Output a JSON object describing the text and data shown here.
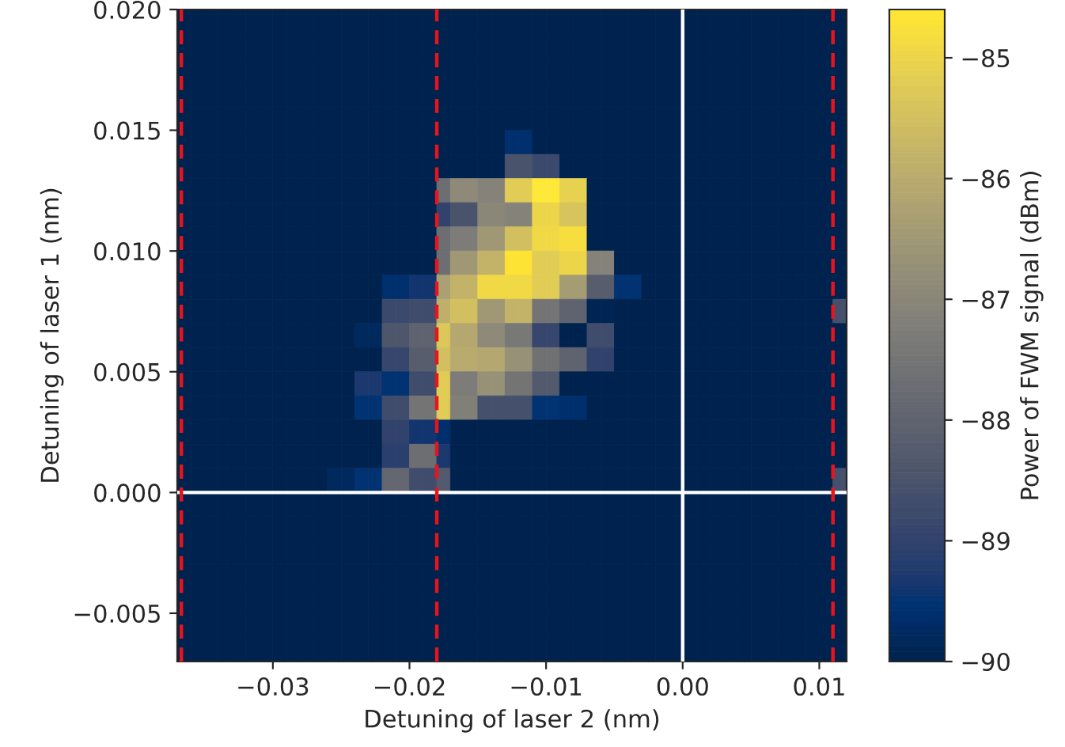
{
  "chart_data": {
    "type": "heatmap",
    "xlabel": "Detuning of laser 2 (nm)",
    "ylabel": "Detuning of laser 1 (nm)",
    "clabel": "Power of FWM signal (dBm)",
    "cells": [
      [
        -90,
        -90,
        -90,
        -90,
        -90,
        -90,
        -90,
        -90,
        -90,
        -90,
        -90,
        -90,
        -90,
        -90,
        -90,
        -90,
        -90,
        -90,
        -90,
        -90,
        -90,
        -90,
        -90,
        -90,
        -90,
        -90,
        -90,
        -90,
        -90,
        -90,
        -90,
        -90,
        -90,
        -90,
        -90,
        -90,
        -90,
        -90,
        -90,
        -90,
        -90,
        -90,
        -90,
        -90,
        -90,
        -90,
        -90,
        -90,
        -90
      ],
      [
        -90,
        -90,
        -90,
        -90,
        -90,
        -90,
        -90,
        -90,
        -90,
        -90,
        -90,
        -90,
        -90,
        -90,
        -90,
        -90,
        -90,
        -90,
        -90,
        -90,
        -90,
        -90,
        -90,
        -90,
        -90,
        -90,
        -90,
        -90,
        -90,
        -90,
        -90,
        -90,
        -90,
        -90,
        -90,
        -90,
        -90,
        -90,
        -90,
        -90,
        -90,
        -90,
        -90,
        -90,
        -90,
        -90,
        -90,
        -90,
        -90
      ],
      [
        -90,
        -90,
        -90,
        -90,
        -90,
        -90,
        -90,
        -90,
        -90,
        -90,
        -90,
        -90,
        -90,
        -90,
        -90,
        -90,
        -90,
        -90,
        -90,
        -90,
        -90,
        -90,
        -90,
        -90,
        -90,
        -90,
        -90,
        -90,
        -90,
        -90,
        -90,
        -90,
        -90,
        -90,
        -90,
        -90,
        -90,
        -90,
        -90,
        -90,
        -90,
        -90,
        -90,
        -90,
        -90,
        -90,
        -90,
        -90,
        -90
      ],
      [
        -90,
        -90,
        -90,
        -90,
        -90,
        -90,
        -90,
        -90,
        -90,
        -90,
        -90,
        -90,
        -90,
        -90,
        -90,
        -90,
        -90,
        -90,
        -90,
        -90,
        -90,
        -90,
        -90,
        -90,
        -90,
        -90,
        -90,
        -90,
        -90,
        -90,
        -90,
        -90,
        -90,
        -90,
        -90,
        -90,
        -90,
        -90,
        -90,
        -90,
        -90,
        -90,
        -90,
        -90,
        -90,
        -90,
        -90,
        -90,
        -90
      ],
      [
        -90,
        -90,
        -90,
        -90,
        -90,
        -90,
        -90,
        -90,
        -90,
        -90,
        -90,
        -90,
        -90,
        -90,
        -90,
        -90,
        -90,
        -90,
        -90,
        -90,
        -90,
        -90,
        -90,
        -90,
        -90,
        -90,
        -90,
        -90,
        -90,
        -90,
        -90,
        -90,
        -90,
        -90,
        -90,
        -90,
        -90,
        -90,
        -90,
        -90,
        -90,
        -90,
        -90,
        -90,
        -90,
        -90,
        -90,
        -90,
        -90
      ],
      [
        -90,
        -90,
        -90,
        -90,
        -90,
        -90,
        -90,
        -90,
        -90,
        -90,
        -90,
        -90,
        -90,
        -90,
        -90,
        -90,
        -90,
        -90,
        -90,
        -90,
        -90,
        -90,
        -90,
        -90,
        -89.6,
        -89.6,
        -90,
        -90,
        -90,
        -90,
        -90,
        -90,
        -90,
        -90,
        -90,
        -90,
        -90,
        -90,
        -90,
        -90,
        -90,
        -90,
        -90,
        -90,
        -90,
        -90,
        -90,
        -90,
        -90
      ],
      [
        -90,
        -90,
        -90,
        -90,
        -90,
        -90,
        -90,
        -90,
        -90,
        -90,
        -90,
        -90,
        -90,
        -90,
        -90,
        -90,
        -90,
        -90,
        -90,
        -90,
        -90,
        -90,
        -90,
        -90,
        -88.5,
        -88.5,
        -88.8,
        -88.8,
        -90,
        -90,
        -90,
        -90,
        -90,
        -90,
        -90,
        -90,
        -90,
        -90,
        -90,
        -90,
        -90,
        -90,
        -90,
        -90,
        -90,
        -90,
        -90,
        -90,
        -90
      ],
      [
        -90,
        -90,
        -90,
        -90,
        -90,
        -90,
        -90,
        -90,
        -90,
        -90,
        -90,
        -90,
        -90,
        -90,
        -90,
        -90,
        -90,
        -90,
        -90,
        -87.7,
        -86.9,
        -86.9,
        -87.1,
        -87.1,
        -85.2,
        -85.2,
        -84.6,
        -84.6,
        -85.1,
        -85.1,
        -90,
        -90,
        -90,
        -90,
        -90,
        -90,
        -90,
        -90,
        -90,
        -90,
        -90,
        -90,
        -90,
        -90,
        -90,
        -90,
        -90,
        -90,
        -90
      ],
      [
        -90,
        -90,
        -90,
        -90,
        -90,
        -90,
        -90,
        -90,
        -90,
        -90,
        -90,
        -90,
        -90,
        -90,
        -90,
        -90,
        -90,
        -90,
        -90,
        -89.0,
        -88.5,
        -88.5,
        -87.0,
        -87.0,
        -87.1,
        -87.1,
        -85.0,
        -85.0,
        -85.4,
        -85.4,
        -90,
        -90,
        -90,
        -90,
        -90,
        -90,
        -90,
        -90,
        -90,
        -90,
        -90,
        -90,
        -90,
        -90,
        -90,
        -90,
        -90,
        -90,
        -90
      ],
      [
        -90,
        -90,
        -90,
        -90,
        -90,
        -90,
        -90,
        -90,
        -90,
        -90,
        -90,
        -90,
        -90,
        -90,
        -90,
        -90,
        -90,
        -90,
        -90,
        -87.7,
        -87.3,
        -87.3,
        -86.5,
        -86.5,
        -85.5,
        -85.5,
        -84.9,
        -84.9,
        -84.8,
        -84.8,
        -90,
        -90,
        -90,
        -90,
        -90,
        -90,
        -90,
        -90,
        -90,
        -90,
        -90,
        -90,
        -90,
        -90,
        -90,
        -90,
        -90,
        -90,
        -90
      ],
      [
        -90,
        -90,
        -90,
        -90,
        -90,
        -90,
        -90,
        -90,
        -90,
        -90,
        -90,
        -90,
        -90,
        -90,
        -90,
        -90,
        -90,
        -90,
        -90,
        -87.7,
        -86.5,
        -86.5,
        -85.8,
        -85.8,
        -84.7,
        -84.7,
        -85.2,
        -85.2,
        -85.0,
        -85.0,
        -87.1,
        -87.1,
        -90,
        -90,
        -90,
        -90,
        -90,
        -90,
        -90,
        -90,
        -90,
        -90,
        -90,
        -90,
        -90,
        -90,
        -90,
        -90,
        -90
      ],
      [
        -90,
        -90,
        -90,
        -90,
        -90,
        -90,
        -90,
        -90,
        -90,
        -90,
        -90,
        -90,
        -90,
        -90,
        -90,
        -89.6,
        -89.6,
        -89.4,
        -89.4,
        -86.3,
        -85.8,
        -85.8,
        -84.9,
        -84.9,
        -84.9,
        -84.9,
        -85.2,
        -85.2,
        -86.4,
        -86.4,
        -88.2,
        -88.2,
        -89.5,
        -89.5,
        -90,
        -90,
        -90,
        -90,
        -90,
        -90,
        -90,
        -90,
        -90,
        -90,
        -90,
        -90,
        -90,
        -90,
        -90
      ],
      [
        -90,
        -90,
        -90,
        -90,
        -90,
        -90,
        -90,
        -90,
        -90,
        -90,
        -90,
        -90,
        -90,
        -90,
        -90,
        -88.8,
        -88.8,
        -88.7,
        -88.7,
        -85.9,
        -85.5,
        -85.5,
        -86.5,
        -86.5,
        -85.8,
        -85.8,
        -87.5,
        -87.5,
        -88.0,
        -88.0,
        -89.9,
        -89.9,
        -90,
        -90,
        -90,
        -90,
        -90,
        -90,
        -90,
        -90,
        -90,
        -90,
        -90,
        -90,
        -90,
        -90,
        -90,
        -90,
        -88.6
      ],
      [
        -90,
        -90,
        -90,
        -90,
        -90,
        -90,
        -90,
        -90,
        -90,
        -90,
        -90,
        -90,
        -90,
        -89.8,
        -89.8,
        -88.4,
        -88.4,
        -88.0,
        -88.0,
        -85.3,
        -86.1,
        -86.1,
        -86.9,
        -86.9,
        -87.4,
        -87.4,
        -88.9,
        -88.9,
        -90,
        -90,
        -88.7,
        -88.7,
        -90,
        -90,
        -90,
        -90,
        -90,
        -90,
        -90,
        -90,
        -90,
        -90,
        -90,
        -90,
        -90,
        -90,
        -90,
        -90,
        -90
      ],
      [
        -90,
        -90,
        -90,
        -90,
        -90,
        -90,
        -90,
        -90,
        -90,
        -90,
        -90,
        -90,
        -90,
        -90,
        -90,
        -88.9,
        -88.9,
        -88.2,
        -88.2,
        -85.5,
        -86.0,
        -86.0,
        -86.1,
        -86.1,
        -86.7,
        -86.7,
        -87.6,
        -87.6,
        -88.0,
        -88.0,
        -89.0,
        -89.0,
        -90,
        -90,
        -90,
        -90,
        -90,
        -90,
        -90,
        -90,
        -90,
        -90,
        -90,
        -90,
        -90,
        -90,
        -90,
        -90,
        -90
      ],
      [
        -90,
        -90,
        -90,
        -90,
        -90,
        -90,
        -90,
        -90,
        -90,
        -90,
        -90,
        -90,
        -90,
        -89.3,
        -89.3,
        -89.5,
        -89.5,
        -88.7,
        -88.7,
        -85.2,
        -87.3,
        -87.3,
        -86.7,
        -86.7,
        -87.5,
        -87.5,
        -88.3,
        -88.3,
        -90,
        -90,
        -90,
        -90,
        -90,
        -90,
        -90,
        -90,
        -90,
        -90,
        -90,
        -90,
        -90,
        -90,
        -90,
        -90,
        -90,
        -90,
        -90,
        -90,
        -90
      ],
      [
        -90,
        -90,
        -90,
        -90,
        -90,
        -90,
        -90,
        -90,
        -90,
        -90,
        -90,
        -90,
        -90,
        -89.5,
        -89.5,
        -88.7,
        -88.7,
        -87.5,
        -87.5,
        -85.2,
        -87.2,
        -87.2,
        -88.6,
        -88.6,
        -88.6,
        -88.6,
        -89.5,
        -89.5,
        -89.6,
        -89.6,
        -90,
        -90,
        -90,
        -90,
        -90,
        -90,
        -90,
        -90,
        -90,
        -90,
        -90,
        -90,
        -90,
        -90,
        -90,
        -90,
        -90,
        -90,
        -90
      ],
      [
        -90,
        -90,
        -90,
        -90,
        -90,
        -90,
        -90,
        -90,
        -90,
        -90,
        -90,
        -90,
        -90,
        -90,
        -90,
        -89.0,
        -89.0,
        -89.4,
        -89.4,
        -89.6,
        -90,
        -90,
        -90,
        -90,
        -90,
        -90,
        -90,
        -90,
        -90,
        -90,
        -90,
        -90,
        -90,
        -90,
        -90,
        -90,
        -90,
        -90,
        -90,
        -90,
        -90,
        -90,
        -90,
        -90,
        -90,
        -90,
        -90,
        -90,
        -90
      ],
      [
        -90,
        -90,
        -90,
        -90,
        -90,
        -90,
        -90,
        -90,
        -90,
        -90,
        -90,
        -90,
        -90,
        -90,
        -90,
        -89.1,
        -89.1,
        -87.7,
        -87.7,
        -89.3,
        -90,
        -90,
        -90,
        -90,
        -90,
        -90,
        -90,
        -90,
        -90,
        -90,
        -90,
        -90,
        -90,
        -90,
        -90,
        -90,
        -90,
        -90,
        -90,
        -90,
        -90,
        -90,
        -90,
        -90,
        -90,
        -90,
        -90,
        -90,
        -90
      ],
      [
        -90,
        -90,
        -90,
        -90,
        -90,
        -90,
        -90,
        -90,
        -90,
        -90,
        -90,
        -89.8,
        -89.8,
        -89.5,
        -89.5,
        -87.9,
        -87.9,
        -88.7,
        -88.7,
        -88.3,
        -90,
        -90,
        -90,
        -90,
        -90,
        -90,
        -90,
        -90,
        -90,
        -90,
        -90,
        -90,
        -90,
        -90,
        -90,
        -90,
        -90,
        -90,
        -90,
        -90,
        -90,
        -90,
        -90,
        -90,
        -90,
        -90,
        -90,
        -90,
        -88.6
      ],
      [
        -90,
        -90,
        -90,
        -90,
        -90,
        -90,
        -90,
        -90,
        -90,
        -90,
        -90,
        -90,
        -90,
        -90,
        -90,
        -90,
        -90,
        -90,
        -90,
        -90,
        -90,
        -90,
        -90,
        -90,
        -90,
        -90,
        -90,
        -90,
        -90,
        -90,
        -90,
        -90,
        -90,
        -90,
        -90,
        -90,
        -90,
        -90,
        -90,
        -90,
        -90,
        -90,
        -90,
        -90,
        -90,
        -90,
        -90,
        -90,
        -90
      ],
      [
        -90,
        -90,
        -90,
        -90,
        -90,
        -90,
        -90,
        -90,
        -90,
        -90,
        -90,
        -90,
        -90,
        -90,
        -90,
        -90,
        -90,
        -90,
        -90,
        -90,
        -90,
        -90,
        -90,
        -90,
        -90,
        -90,
        -90,
        -90,
        -90,
        -90,
        -90,
        -90,
        -90,
        -90,
        -90,
        -90,
        -90,
        -90,
        -90,
        -90,
        -90,
        -90,
        -90,
        -90,
        -90,
        -90,
        -90,
        -90,
        -90
      ],
      [
        -90,
        -90,
        -90,
        -90,
        -90,
        -90,
        -90,
        -90,
        -90,
        -90,
        -90,
        -90,
        -90,
        -90,
        -90,
        -90,
        -90,
        -90,
        -90,
        -90,
        -90,
        -90,
        -90,
        -90,
        -90,
        -90,
        -90,
        -90,
        -90,
        -90,
        -90,
        -90,
        -90,
        -90,
        -90,
        -90,
        -90,
        -90,
        -90,
        -90,
        -90,
        -90,
        -90,
        -90,
        -90,
        -90,
        -90,
        -90,
        -90
      ],
      [
        -90,
        -90,
        -90,
        -90,
        -90,
        -90,
        -90,
        -90,
        -90,
        -90,
        -90,
        -90,
        -90,
        -90,
        -90,
        -90,
        -90,
        -90,
        -90,
        -90,
        -90,
        -90,
        -90,
        -90,
        -90,
        -90,
        -90,
        -90,
        -90,
        -90,
        -90,
        -90,
        -90,
        -90,
        -90,
        -90,
        -90,
        -90,
        -90,
        -90,
        -90,
        -90,
        -90,
        -90,
        -90,
        -90,
        -90,
        -90,
        -90
      ],
      [
        -90,
        -90,
        -90,
        -90,
        -90,
        -90,
        -90,
        -90,
        -90,
        -90,
        -90,
        -90,
        -90,
        -90,
        -90,
        -90,
        -90,
        -90,
        -90,
        -90,
        -90,
        -90,
        -90,
        -90,
        -90,
        -90,
        -90,
        -90,
        -90,
        -90,
        -90,
        -90,
        -90,
        -90,
        -90,
        -90,
        -90,
        -90,
        -90,
        -90,
        -90,
        -90,
        -90,
        -90,
        -90,
        -90,
        -90,
        -90,
        -90
      ],
      [
        -90,
        -90,
        -90,
        -90,
        -90,
        -90,
        -90,
        -90,
        -90,
        -90,
        -90,
        -90,
        -90,
        -90,
        -90,
        -90,
        -90,
        -90,
        -90,
        -90,
        -90,
        -90,
        -90,
        -90,
        -90,
        -90,
        -90,
        -90,
        -90,
        -90,
        -90,
        -90,
        -90,
        -90,
        -90,
        -90,
        -90,
        -90,
        -90,
        -90,
        -90,
        -90,
        -90,
        -90,
        -90,
        -90,
        -90,
        -90,
        -90
      ],
      [
        -90,
        -90,
        -90,
        -90,
        -90,
        -90,
        -90,
        -90,
        -90,
        -90,
        -90,
        -90,
        -90,
        -90,
        -90,
        -90,
        -90,
        -90,
        -90,
        -90,
        -90,
        -90,
        -90,
        -90,
        -90,
        -90,
        -90,
        -90,
        -90,
        -90,
        -90,
        -90,
        -90,
        -90,
        -90,
        -90,
        -90,
        -90,
        -90,
        -90,
        -90,
        -90,
        -90,
        -90,
        -90,
        -90,
        -90,
        -90,
        -90
      ]
    ],
    "clim": [
      -90,
      -84.6
    ],
    "cticks": [
      {
        "value": -90,
        "label": "−90"
      },
      {
        "value": -89,
        "label": "−89"
      },
      {
        "value": -88,
        "label": "−88"
      },
      {
        "value": -87,
        "label": "−87"
      },
      {
        "value": -86,
        "label": "−86"
      },
      {
        "value": -85,
        "label": "−85"
      }
    ],
    "xlim": [
      -0.037,
      0.012
    ],
    "ylim": [
      -0.007,
      0.02
    ],
    "xticks": [
      {
        "value": -0.03,
        "label": "−0.03"
      },
      {
        "value": -0.02,
        "label": "−0.02"
      },
      {
        "value": -0.01,
        "label": "−0.01"
      },
      {
        "value": 0.0,
        "label": "0.00"
      },
      {
        "value": 0.01,
        "label": "0.01"
      }
    ],
    "yticks": [
      {
        "value": -0.005,
        "label": "−0.005"
      },
      {
        "value": 0.0,
        "label": "0.000"
      },
      {
        "value": 0.005,
        "label": "0.005"
      },
      {
        "value": 0.01,
        "label": "0.010"
      },
      {
        "value": 0.015,
        "label": "0.015"
      },
      {
        "value": 0.02,
        "label": "0.020"
      }
    ],
    "ref_lines": [
      {
        "axis": "x",
        "value": 0.0,
        "color": "#ffffff",
        "line_style": "solid"
      },
      {
        "axis": "y",
        "value": 0.0,
        "color": "#ffffff",
        "line_style": "solid"
      },
      {
        "axis": "x",
        "value": -0.0367,
        "color": "#e8141c",
        "line_style": "dashed"
      },
      {
        "axis": "x",
        "value": -0.018,
        "color": "#e8141c",
        "line_style": "dashed"
      },
      {
        "axis": "x",
        "value": 0.011,
        "color": "#e8141c",
        "line_style": "dashed"
      }
    ]
  }
}
